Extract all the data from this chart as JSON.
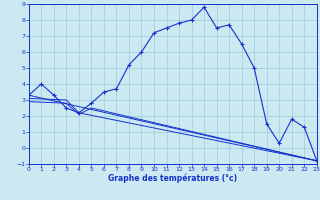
{
  "xlabel": "Graphe des températures (°c)",
  "xlim": [
    0,
    23
  ],
  "ylim": [
    -1,
    9
  ],
  "xticks": [
    0,
    1,
    2,
    3,
    4,
    5,
    6,
    7,
    8,
    9,
    10,
    11,
    12,
    13,
    14,
    15,
    16,
    17,
    18,
    19,
    20,
    21,
    22,
    23
  ],
  "yticks": [
    -1,
    0,
    1,
    2,
    3,
    4,
    5,
    6,
    7,
    8,
    9
  ],
  "bg_color": "#cce8f0",
  "line_color": "#1433cc",
  "grid_color": "#99cce0",
  "main_x": [
    0,
    1,
    2,
    3,
    4,
    5,
    6,
    7,
    8,
    9,
    10,
    11,
    12,
    13,
    14,
    15,
    16,
    17,
    18,
    19,
    20,
    21,
    22,
    23
  ],
  "main_y": [
    3.3,
    4.0,
    3.3,
    2.5,
    2.2,
    2.8,
    3.5,
    3.7,
    5.2,
    6.0,
    7.2,
    7.5,
    7.8,
    8.0,
    8.8,
    7.5,
    7.7,
    6.5,
    5.0,
    1.5,
    0.3,
    1.8,
    1.3,
    -0.8
  ],
  "line2_x": [
    0,
    23
  ],
  "line2_y": [
    3.3,
    -0.8
  ],
  "line3_x": [
    0,
    3,
    4,
    23
  ],
  "line3_y": [
    3.1,
    3.0,
    2.2,
    -0.8
  ],
  "line4_x": [
    0,
    3,
    4,
    5,
    23
  ],
  "line4_y": [
    2.9,
    2.8,
    2.1,
    2.5,
    -0.8
  ]
}
